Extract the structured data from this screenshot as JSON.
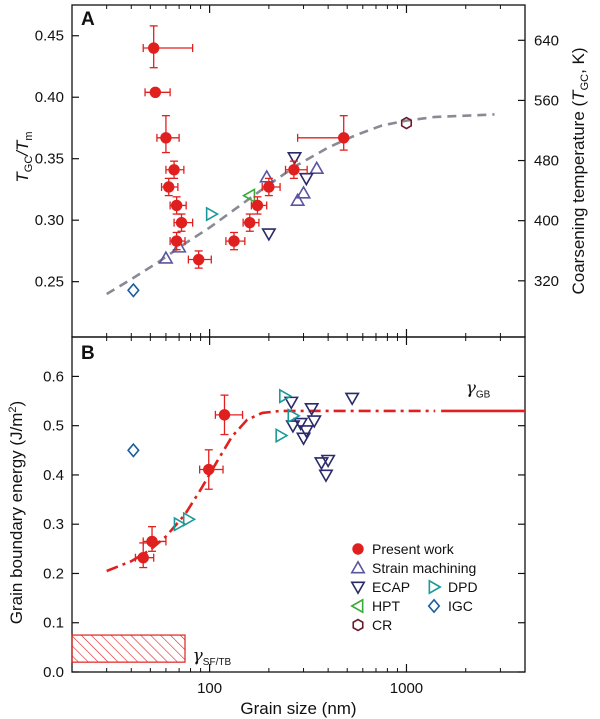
{
  "chart_data": [
    {
      "panel": "A",
      "type": "scatter",
      "xscale": "log",
      "xlim": [
        20,
        4000
      ],
      "ylim": [
        0.205,
        0.475
      ],
      "ylabel_main": "T",
      "ylabel_sub1": "GC",
      "ylabel_mid": "/T",
      "ylabel_sub2": "m",
      "yticks": [
        0.25,
        0.3,
        0.35,
        0.4,
        0.45
      ],
      "ytick_labels": [
        "0.25",
        "0.30",
        "0.35",
        "0.40",
        "0.45"
      ],
      "y2_label_pre": "Coarsening temperature (",
      "y2_label_T": "T",
      "y2_label_sub": "GC",
      "y2_label_post": ", K)",
      "y2_ticks": [
        320,
        400,
        480,
        560,
        640
      ],
      "y2_tick_values": [
        0.2507,
        0.2996,
        0.3485,
        0.3974,
        0.4463
      ],
      "series": [
        {
          "name": "Present work",
          "marker": "circle",
          "color": "#e0201e",
          "points": [
            {
              "x": 52,
              "y": 0.44,
              "xerr": [
                6,
                30
              ],
              "yerr": [
                0.016,
                0.018
              ]
            },
            {
              "x": 53,
              "y": 0.404,
              "xerr": [
                6,
                10
              ],
              "yerr": [
                0,
                0
              ]
            },
            {
              "x": 60,
              "y": 0.367,
              "xerr": [
                6,
                10
              ],
              "yerr": [
                0.012,
                0.018
              ]
            },
            {
              "x": 66,
              "y": 0.341,
              "xerr": [
                6,
                8
              ],
              "yerr": [
                0.007,
                0.007
              ]
            },
            {
              "x": 62,
              "y": 0.327,
              "xerr": [
                5,
                7
              ],
              "yerr": [
                0.007,
                0.007
              ]
            },
            {
              "x": 68,
              "y": 0.312,
              "xerr": [
                5,
                8
              ],
              "yerr": [
                0.007,
                0.007
              ]
            },
            {
              "x": 72,
              "y": 0.298,
              "xerr": [
                6,
                10
              ],
              "yerr": [
                0.007,
                0.007
              ]
            },
            {
              "x": 68,
              "y": 0.283,
              "xerr": [
                5,
                7
              ],
              "yerr": [
                0.007,
                0.007
              ]
            },
            {
              "x": 88,
              "y": 0.268,
              "xerr": [
                10,
                14
              ],
              "yerr": [
                0.007,
                0.007
              ]
            },
            {
              "x": 133,
              "y": 0.283,
              "xerr": [
                12,
                18
              ],
              "yerr": [
                0.007,
                0.007
              ]
            },
            {
              "x": 160,
              "y": 0.298,
              "xerr": [
                12,
                18
              ],
              "yerr": [
                0.007,
                0.007
              ]
            },
            {
              "x": 175,
              "y": 0.312,
              "xerr": [
                12,
                20
              ],
              "yerr": [
                0.007,
                0.007
              ]
            },
            {
              "x": 200,
              "y": 0.327,
              "xerr": [
                15,
                28
              ],
              "yerr": [
                0.007,
                0.007
              ]
            },
            {
              "x": 268,
              "y": 0.341,
              "xerr": [
                25,
                45
              ],
              "yerr": [
                0.007,
                0.007
              ]
            },
            {
              "x": 480,
              "y": 0.367,
              "xerr": [
                200,
                0
              ],
              "yerr": [
                0.01,
                0.018
              ]
            }
          ]
        },
        {
          "name": "Strain machining",
          "marker": "triangle-up",
          "color": "#5a55a0",
          "points": [
            {
              "x": 60,
              "y": 0.269
            },
            {
              "x": 70,
              "y": 0.278
            },
            {
              "x": 195,
              "y": 0.335
            },
            {
              "x": 280,
              "y": 0.316
            },
            {
              "x": 300,
              "y": 0.322
            },
            {
              "x": 350,
              "y": 0.342
            }
          ]
        },
        {
          "name": "ECAP",
          "marker": "triangle-down",
          "color": "#2a2a6a",
          "points": [
            {
              "x": 200,
              "y": 0.289
            },
            {
              "x": 270,
              "y": 0.351
            },
            {
              "x": 310,
              "y": 0.334
            }
          ]
        },
        {
          "name": "HPT",
          "marker": "triangle-left",
          "color": "#3aaa3a",
          "points": [
            {
              "x": 160,
              "y": 0.32
            }
          ]
        },
        {
          "name": "DPD",
          "marker": "triangle-right",
          "color": "#1a9a9a",
          "points": [
            {
              "x": 102,
              "y": 0.305
            }
          ]
        },
        {
          "name": "IGC",
          "marker": "diamond",
          "color": "#1a5ea0",
          "points": [
            {
              "x": 41,
              "y": 0.243
            }
          ]
        },
        {
          "name": "CR",
          "marker": "hexagon",
          "color": "#6a1a2a",
          "points": [
            {
              "x": 1000,
              "y": 0.379
            }
          ]
        }
      ],
      "fit_curve": {
        "style": "dashed",
        "color": "#8a8a96",
        "x": [
          30,
          40,
          55,
          75,
          100,
          140,
          200,
          280,
          400,
          550,
          750,
          1000,
          1400,
          2000,
          2800
        ],
        "y": [
          0.24,
          0.252,
          0.266,
          0.281,
          0.294,
          0.311,
          0.329,
          0.345,
          0.359,
          0.369,
          0.377,
          0.381,
          0.384,
          0.385,
          0.386
        ]
      }
    },
    {
      "panel": "B",
      "type": "scatter",
      "xscale": "log",
      "xlim": [
        20,
        4000
      ],
      "ylim": [
        0,
        0.68
      ],
      "xlabel": "Grain size (nm)",
      "xticks": [
        100,
        1000
      ],
      "xtick_labels": [
        "100",
        "1000"
      ],
      "ylabel": "Grain boundary energy (J/m",
      "ylabel_sup": "2",
      "ylabel_end": ")",
      "yticks": [
        0.0,
        0.1,
        0.2,
        0.3,
        0.4,
        0.5,
        0.6
      ],
      "ytick_labels": [
        "0.0",
        "0.1",
        "0.2",
        "0.3",
        "0.4",
        "0.5",
        "0.6"
      ],
      "series": [
        {
          "name": "Present work",
          "marker": "circle",
          "color": "#e0201e",
          "points": [
            {
              "x": 46,
              "y": 0.232,
              "xerr": [
                4,
                6
              ],
              "yerr": [
                0.02,
                0.03
              ]
            },
            {
              "x": 51,
              "y": 0.265,
              "xerr": [
                5,
                9
              ],
              "yerr": [
                0.02,
                0.03
              ]
            },
            {
              "x": 99,
              "y": 0.411,
              "xerr": [
                10,
                18
              ],
              "yerr": [
                0.04,
                0.04
              ]
            },
            {
              "x": 119,
              "y": 0.522,
              "xerr": [
                12,
                28
              ],
              "yerr": [
                0.04,
                0.04
              ]
            }
          ]
        },
        {
          "name": "ECAP",
          "marker": "triangle-down",
          "color": "#2a2a6a",
          "points": [
            {
              "x": 260,
              "y": 0.548
            },
            {
              "x": 265,
              "y": 0.5
            },
            {
              "x": 290,
              "y": 0.505
            },
            {
              "x": 300,
              "y": 0.475
            },
            {
              "x": 310,
              "y": 0.49
            },
            {
              "x": 330,
              "y": 0.535
            },
            {
              "x": 340,
              "y": 0.51
            },
            {
              "x": 370,
              "y": 0.425
            },
            {
              "x": 390,
              "y": 0.4
            },
            {
              "x": 400,
              "y": 0.43
            },
            {
              "x": 530,
              "y": 0.556
            }
          ]
        },
        {
          "name": "DPD",
          "marker": "triangle-right",
          "color": "#1a9a9a",
          "points": [
            {
              "x": 70,
              "y": 0.3
            },
            {
              "x": 78,
              "y": 0.31
            },
            {
              "x": 230,
              "y": 0.48
            },
            {
              "x": 240,
              "y": 0.56
            },
            {
              "x": 265,
              "y": 0.52
            }
          ]
        },
        {
          "name": "IGC",
          "marker": "diamond",
          "color": "#1a5ea0",
          "points": [
            {
              "x": 41,
              "y": 0.45
            }
          ]
        }
      ],
      "fit_curve": {
        "style": "dash-dot",
        "color": "#e0201e",
        "x": [
          30,
          40,
          50,
          60,
          75,
          90,
          110,
          130,
          155,
          185,
          230,
          300,
          450,
          800,
          1400
        ],
        "y": [
          0.205,
          0.225,
          0.248,
          0.275,
          0.32,
          0.37,
          0.43,
          0.478,
          0.512,
          0.526,
          0.53,
          0.53,
          0.53,
          0.53,
          0.53
        ]
      },
      "plateau_line": {
        "x": [
          1500,
          4000
        ],
        "y": 0.53,
        "color": "#e0201e"
      },
      "gamma_gb": {
        "symbol": "γ",
        "sub": "GB",
        "x": 2000,
        "y": 0.565
      },
      "sf_tb_box": {
        "x": [
          20,
          75
        ],
        "y": [
          0.02,
          0.075
        ],
        "hatch_color": "#e0201e"
      },
      "gamma_sftb": {
        "symbol": "γ",
        "sub": "SF/TB",
        "x": 82,
        "y": 0.035
      },
      "legend": {
        "position": "lower-right",
        "rows": [
          [
            {
              "name": "Present work",
              "marker": "circle",
              "color": "#e0201e"
            }
          ],
          [
            {
              "name": "Strain machining",
              "marker": "triangle-up",
              "color": "#5a55a0"
            }
          ],
          [
            {
              "name": "ECAP",
              "marker": "triangle-down",
              "color": "#2a2a6a"
            },
            {
              "name": "DPD",
              "marker": "triangle-right",
              "color": "#1a9a9a"
            }
          ],
          [
            {
              "name": "HPT",
              "marker": "triangle-left",
              "color": "#3aaa3a"
            },
            {
              "name": "IGC",
              "marker": "diamond",
              "color": "#1a5ea0"
            }
          ],
          [
            {
              "name": "CR",
              "marker": "hexagon",
              "color": "#6a1a2a"
            }
          ]
        ]
      }
    }
  ]
}
